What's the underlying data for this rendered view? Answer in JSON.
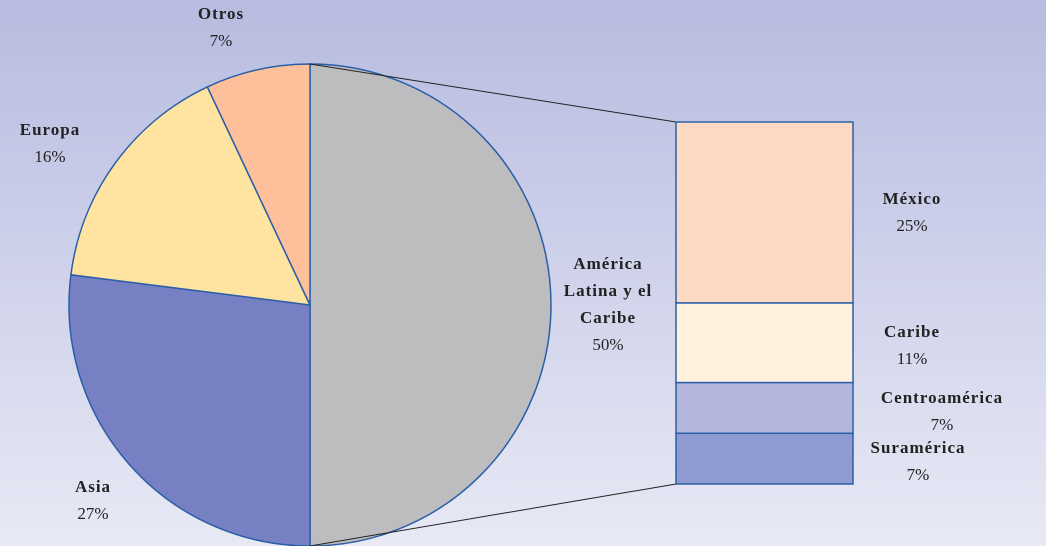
{
  "chart_data": {
    "type": "pie",
    "labels": [
      "América Latina y el Caribe",
      "Asia",
      "Europa",
      "Otros"
    ],
    "values": [
      50,
      27,
      16,
      7
    ],
    "value_labels": [
      "50%",
      "27%",
      "16%",
      "7%"
    ],
    "colors": [
      "#bdbcbf",
      "#7880c4",
      "#fee4a0",
      "#fec09b"
    ],
    "breakdown": {
      "labels": [
        "México",
        "Caribe",
        "Centroamérica",
        "Suramérica"
      ],
      "values": [
        25,
        11,
        7,
        7
      ],
      "value_labels": [
        "25%",
        "11%",
        "7%",
        "7%"
      ],
      "colors": [
        "#fed9c1",
        "#fef2dc",
        "#b3b7dd",
        "#8f9bd0"
      ]
    }
  }
}
